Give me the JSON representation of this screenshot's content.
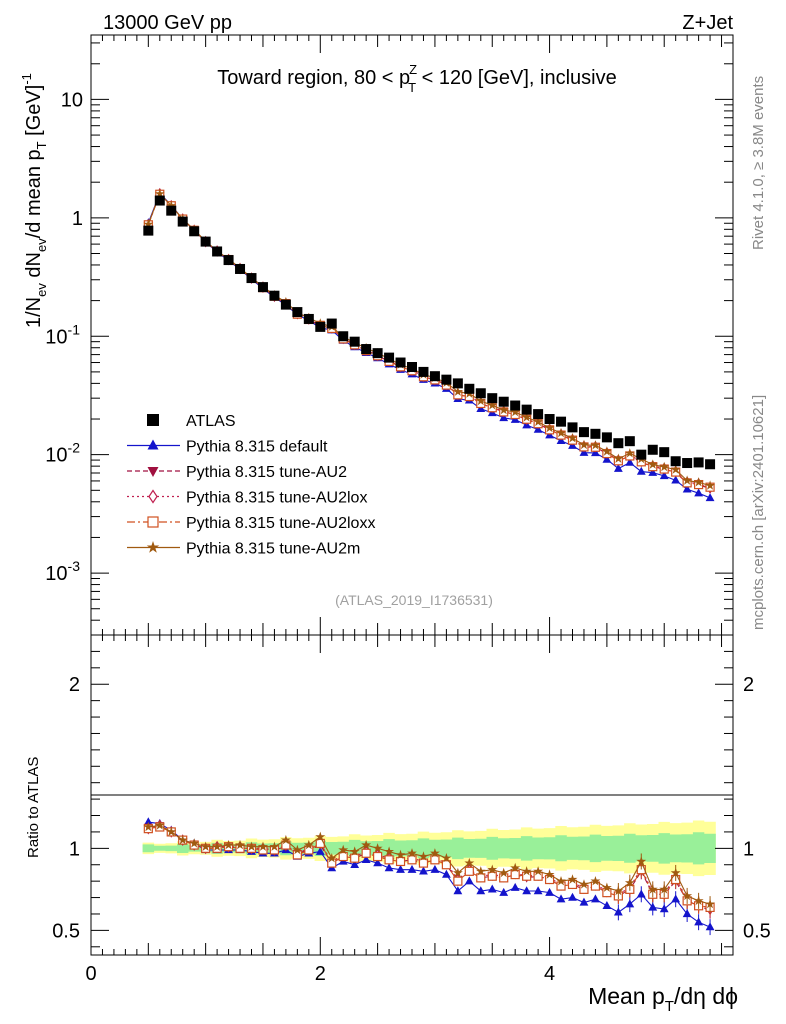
{
  "header": {
    "left": "13000 GeV pp",
    "right": "Z+Jet"
  },
  "side_text": {
    "rivet": "Rivet 4.1.0, ≥ 3.8M events",
    "mcplots": "mcplots.cern.ch [arXiv:2401.10621]"
  },
  "chart_data": {
    "type": "scatter",
    "title": {
      "main_a": "Toward region, 80 < p",
      "sup": "Z",
      "sub": "T",
      "main_b": " < 120 [GeV], inclusive"
    },
    "analysis_tag": "(ATLAS_2019_I1736531)",
    "ylabel": {
      "a": "1/N",
      "ev1": "ev",
      "b": " dN",
      "ev2": "ev",
      "c": "/d mean p",
      "t": "T",
      "d": " [GeV]",
      "sup": "-1"
    },
    "ratio_ylabel": "Ratio to ATLAS",
    "xlabel": {
      "a": "Mean p",
      "t": "T",
      "b": "/dη dϕ"
    },
    "xlim": [
      0,
      5.6
    ],
    "ylim": [
      0.0003,
      35
    ],
    "ratio_ylim": [
      0.35,
      2.3
    ],
    "x_ticks": [
      "0",
      "2",
      "4"
    ],
    "y_ticks": [
      {
        "base": "10",
        "exp": "-3"
      },
      {
        "base": "10",
        "exp": "-2"
      },
      {
        "base": "10",
        "exp": "-1"
      },
      {
        "base": "1",
        "exp": ""
      },
      {
        "base": "10",
        "exp": ""
      }
    ],
    "ratio_ticks": [
      "0.5",
      "1",
      "2"
    ],
    "ratio_right_ticks": [
      "0.5",
      "1",
      "2"
    ],
    "x": [
      0.5,
      0.6,
      0.7,
      0.8,
      0.9,
      1.0,
      1.1,
      1.2,
      1.3,
      1.4,
      1.5,
      1.6,
      1.7,
      1.8,
      1.9,
      2.0,
      2.1,
      2.2,
      2.3,
      2.4,
      2.5,
      2.6,
      2.7,
      2.8,
      2.9,
      3.0,
      3.1,
      3.2,
      3.3,
      3.4,
      3.5,
      3.6,
      3.7,
      3.8,
      3.9,
      4.0,
      4.1,
      4.2,
      4.3,
      4.4,
      4.5,
      4.6,
      4.7,
      4.8,
      4.9,
      5.0,
      5.1,
      5.2,
      5.3,
      5.4
    ],
    "atlas": [
      0.78,
      1.4,
      1.15,
      0.93,
      0.77,
      0.63,
      0.52,
      0.44,
      0.37,
      0.31,
      0.26,
      0.22,
      0.185,
      0.16,
      0.14,
      0.12,
      0.128,
      0.1,
      0.09,
      0.078,
      0.072,
      0.066,
      0.06,
      0.055,
      0.05,
      0.046,
      0.043,
      0.04,
      0.036,
      0.033,
      0.03,
      0.028,
      0.026,
      0.024,
      0.022,
      0.02,
      0.019,
      0.017,
      0.0155,
      0.015,
      0.014,
      0.0125,
      0.013,
      0.01,
      0.011,
      0.0105,
      0.0088,
      0.0085,
      0.0086,
      0.0083
    ],
    "series": [
      {
        "name": "Pythia 8.315 default",
        "color": "#1414cc",
        "marker": "triangle-up",
        "dash": "",
        "ratio": [
          1.16,
          1.15,
          1.11,
          1.05,
          1.03,
          0.99,
          0.99,
          0.99,
          0.99,
          0.98,
          0.97,
          0.97,
          0.99,
          0.95,
          0.97,
          0.98,
          0.88,
          0.92,
          0.9,
          0.93,
          0.91,
          0.88,
          0.87,
          0.87,
          0.86,
          0.87,
          0.84,
          0.74,
          0.8,
          0.74,
          0.75,
          0.73,
          0.76,
          0.74,
          0.74,
          0.73,
          0.69,
          0.7,
          0.67,
          0.69,
          0.65,
          0.61,
          0.66,
          0.72,
          0.64,
          0.63,
          0.69,
          0.6,
          0.55,
          0.52
        ]
      },
      {
        "name": "Pythia 8.315 tune-AU2",
        "color": "#a01040",
        "marker": "triangle-down",
        "dash": "5,3",
        "ratio": [
          1.13,
          1.14,
          1.1,
          1.05,
          1.02,
          1.0,
          1.0,
          1.01,
          1.0,
          1.0,
          0.99,
          0.99,
          1.01,
          0.97,
          0.99,
          1.02,
          0.91,
          0.95,
          0.94,
          0.97,
          0.95,
          0.93,
          0.92,
          0.93,
          0.91,
          0.93,
          0.9,
          0.8,
          0.86,
          0.82,
          0.83,
          0.82,
          0.84,
          0.82,
          0.83,
          0.81,
          0.77,
          0.78,
          0.75,
          0.77,
          0.73,
          0.71,
          0.75,
          0.86,
          0.72,
          0.72,
          0.8,
          0.68,
          0.65,
          0.62
        ]
      },
      {
        "name": "Pythia 8.315 tune-AU2lox",
        "color": "#c02050",
        "marker": "diamond",
        "dash": "2,3",
        "ratio": [
          1.12,
          1.14,
          1.1,
          1.05,
          1.02,
          1.0,
          1.01,
          1.01,
          1.01,
          1.0,
          1.0,
          0.99,
          1.02,
          0.97,
          1.0,
          1.03,
          0.92,
          0.96,
          0.95,
          0.98,
          0.96,
          0.94,
          0.93,
          0.94,
          0.92,
          0.94,
          0.91,
          0.81,
          0.87,
          0.83,
          0.84,
          0.83,
          0.85,
          0.83,
          0.84,
          0.82,
          0.78,
          0.79,
          0.76,
          0.78,
          0.74,
          0.72,
          0.76,
          0.88,
          0.73,
          0.73,
          0.82,
          0.69,
          0.66,
          0.63
        ]
      },
      {
        "name": "Pythia 8.315 tune-AU2loxx",
        "color": "#d05020",
        "marker": "square-open",
        "dash": "8,3,2,3",
        "ratio": [
          1.12,
          1.13,
          1.1,
          1.05,
          1.02,
          1.0,
          1.0,
          1.01,
          1.0,
          1.0,
          0.99,
          0.99,
          1.02,
          0.96,
          0.99,
          1.03,
          0.91,
          0.95,
          0.94,
          0.97,
          0.95,
          0.93,
          0.92,
          0.93,
          0.91,
          0.93,
          0.9,
          0.8,
          0.86,
          0.82,
          0.83,
          0.82,
          0.84,
          0.83,
          0.83,
          0.81,
          0.77,
          0.78,
          0.75,
          0.77,
          0.73,
          0.71,
          0.75,
          0.87,
          0.72,
          0.72,
          0.81,
          0.68,
          0.65,
          0.64
        ]
      },
      {
        "name": "Pythia 8.315 tune-AU2m",
        "color": "#a05a10",
        "marker": "star",
        "dash": "",
        "ratio": [
          1.13,
          1.14,
          1.1,
          1.05,
          1.03,
          1.01,
          1.01,
          1.02,
          1.02,
          1.01,
          1.01,
          1.01,
          1.05,
          0.99,
          1.02,
          1.07,
          0.94,
          0.99,
          0.98,
          1.02,
          1.0,
          0.98,
          0.96,
          0.97,
          0.95,
          0.97,
          0.94,
          0.85,
          0.91,
          0.86,
          0.87,
          0.85,
          0.88,
          0.86,
          0.86,
          0.84,
          0.8,
          0.81,
          0.78,
          0.8,
          0.76,
          0.74,
          0.79,
          0.92,
          0.75,
          0.75,
          0.85,
          0.71,
          0.68,
          0.66
        ]
      }
    ],
    "legend": {
      "position": "middle-left",
      "atlas_label": "ATLAS"
    }
  }
}
